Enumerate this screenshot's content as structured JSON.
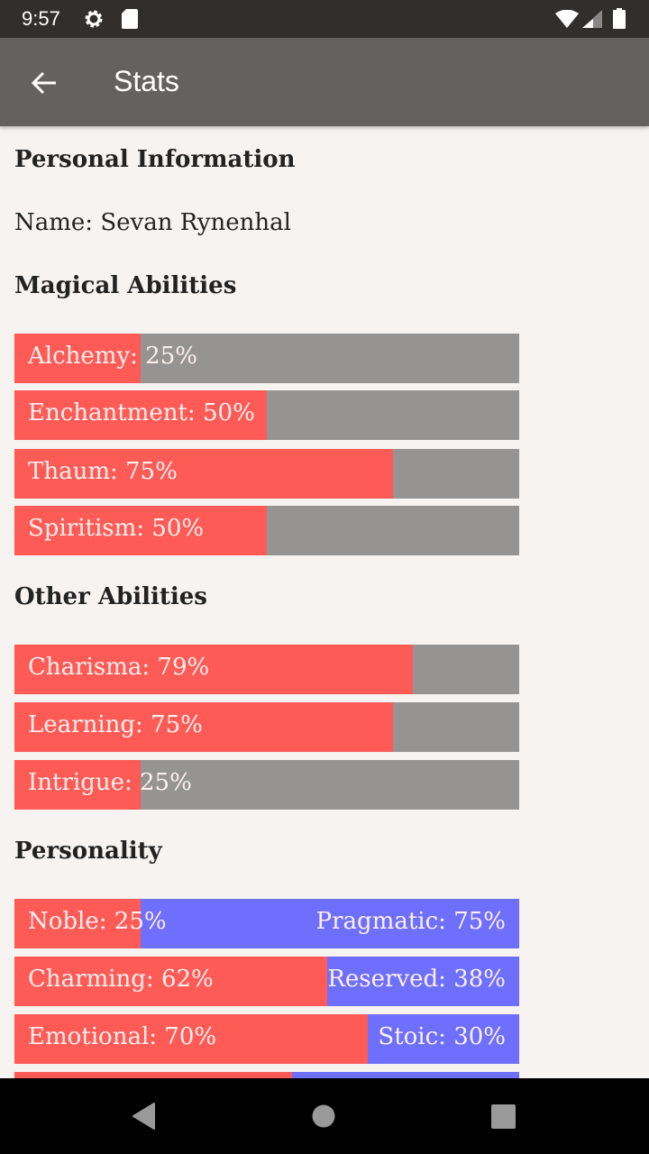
{
  "status_bar": {
    "time": "9:57",
    "icons": [
      "gear-icon",
      "sd-card-icon",
      "wifi-icon",
      "signal-icon",
      "battery-icon"
    ]
  },
  "app_bar": {
    "title": "Stats",
    "back_icon": "arrow-back-icon"
  },
  "colors": {
    "primary": "#fe5b57",
    "secondary": "#6e6ffc",
    "track": "#959492",
    "app_bar": "#636260"
  },
  "personal": {
    "heading": "Personal Information",
    "name": "Name: Sevan Rynenhal"
  },
  "magical": {
    "heading": "Magical Abilities",
    "bars": [
      {
        "label": "Alchemy: 25%",
        "value": 25
      },
      {
        "label": "Enchantment: 50%",
        "value": 50
      },
      {
        "label": "Thaum: 75%",
        "value": 75
      },
      {
        "label": "Spiritism: 50%",
        "value": 50
      }
    ]
  },
  "other": {
    "heading": "Other Abilities",
    "bars": [
      {
        "label": "Charisma: 79%",
        "value": 79
      },
      {
        "label": "Learning: 75%",
        "value": 75
      },
      {
        "label": "Intrigue: 25%",
        "value": 25
      }
    ]
  },
  "personality": {
    "heading": "Personality",
    "bars": [
      {
        "left": "Noble: 25%",
        "right": "Pragmatic: 75%",
        "value": 25
      },
      {
        "left": "Charming: 62%",
        "right": "Reserved: 38%",
        "value": 62
      },
      {
        "left": "Emotional: 70%",
        "right": "Stoic: 30%",
        "value": 70
      },
      {
        "value": 55
      }
    ]
  }
}
